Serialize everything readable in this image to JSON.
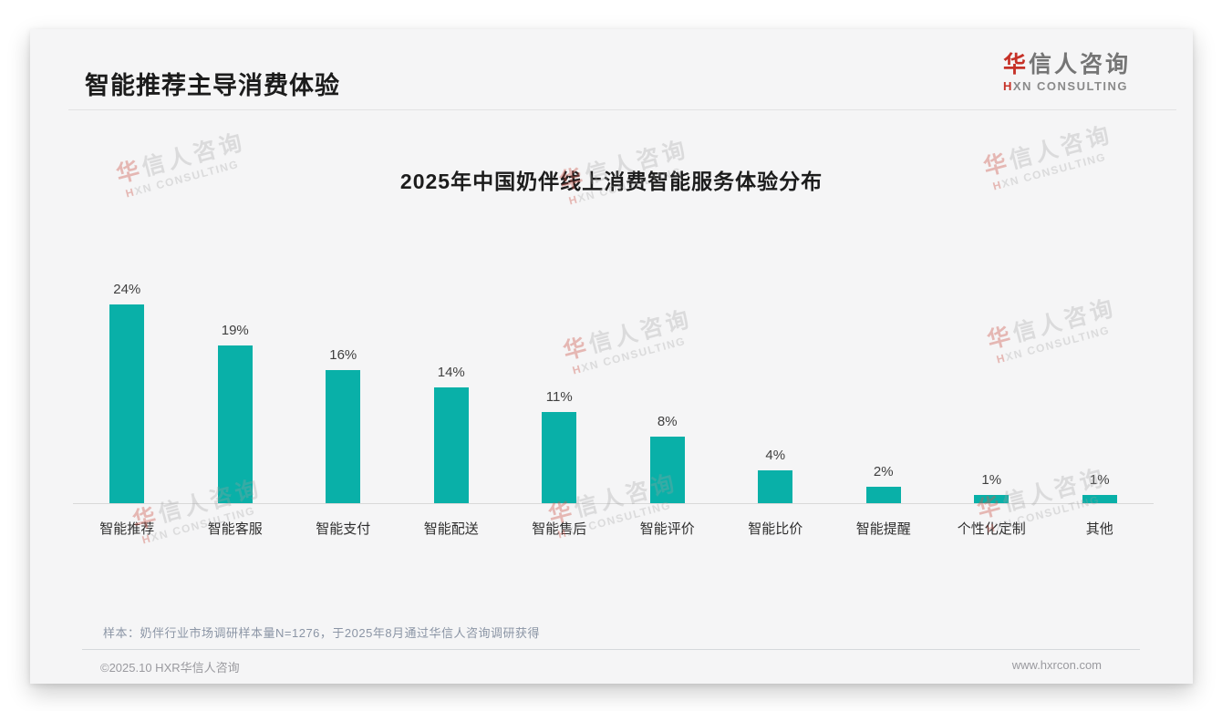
{
  "page": {
    "title": "智能推荐主导消费体验"
  },
  "logo": {
    "zh_first": "华",
    "zh_rest": "信人咨询",
    "en_first": "H",
    "en_rest": "XN CONSULTING"
  },
  "watermark": {
    "zh_first": "华",
    "zh_rest": "信人咨询",
    "en_first": "H",
    "en_rest": "XN CONSULTING"
  },
  "chart_data": {
    "type": "bar",
    "title": "2025年中国奶伴线上消费智能服务体验分布",
    "categories": [
      "智能推荐",
      "智能客服",
      "智能支付",
      "智能配送",
      "智能售后",
      "智能评价",
      "智能比价",
      "智能提醒",
      "个性化定制",
      "其他"
    ],
    "values": [
      24,
      19,
      16,
      14,
      11,
      8,
      4,
      2,
      1,
      1
    ],
    "value_labels": [
      "24%",
      "19%",
      "16%",
      "14%",
      "11%",
      "8%",
      "4%",
      "2%",
      "1%",
      "1%"
    ],
    "unit": "%",
    "ylim": [
      0,
      26
    ],
    "grid": false,
    "legend": false,
    "bar_color": "#09b0a8"
  },
  "note": "样本：奶伴行业市场调研样本量N=1276，于2025年8月通过华信人咨询调研获得",
  "footer": {
    "left": "©2025.10 HXR华信人咨询",
    "right": "www.hxrcon.com"
  },
  "colors": {
    "bar": "#09b0a8",
    "accent_red": "#c63127",
    "title_text": "#1c1c1c",
    "note_text": "#8b95a5",
    "footer_text": "#9a9a9f",
    "card_bg": "#f5f5f6"
  }
}
